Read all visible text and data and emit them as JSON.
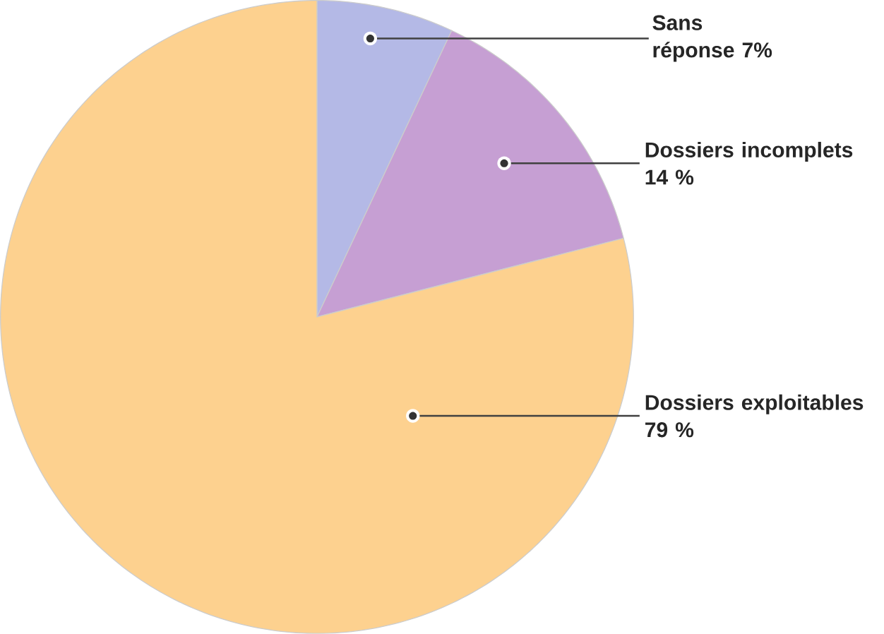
{
  "chart_data": {
    "type": "pie",
    "categories": [
      "Sans réponse",
      "Dossiers incomplets",
      "Dossiers exploitables"
    ],
    "values": [
      7,
      14,
      79
    ],
    "value_labels": [
      "7%",
      "14 %",
      "79 %"
    ],
    "colors": [
      "#b4b9e6",
      "#c69fd3",
      "#fdd18f"
    ]
  }
}
